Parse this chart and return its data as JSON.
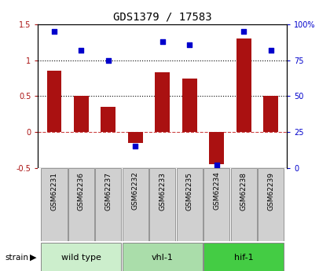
{
  "title": "GDS1379 / 17583",
  "samples": [
    "GSM62231",
    "GSM62236",
    "GSM62237",
    "GSM62232",
    "GSM62233",
    "GSM62235",
    "GSM62234",
    "GSM62238",
    "GSM62239"
  ],
  "log2_ratio": [
    0.85,
    0.5,
    0.35,
    -0.15,
    0.83,
    0.75,
    -0.45,
    1.3,
    0.5
  ],
  "percentile_rank": [
    95,
    82,
    75,
    15,
    88,
    86,
    2,
    95,
    82
  ],
  "groups": [
    {
      "label": "wild type",
      "start": 0,
      "end": 3,
      "color": "#cceecc"
    },
    {
      "label": "vhl-1",
      "start": 3,
      "end": 6,
      "color": "#aaddaa"
    },
    {
      "label": "hif-1",
      "start": 6,
      "end": 9,
      "color": "#44cc44"
    }
  ],
  "bar_color": "#aa1111",
  "dot_color": "#0000cc",
  "ylim": [
    -0.5,
    1.5
  ],
  "y2lim": [
    0,
    100
  ],
  "yticks": [
    -0.5,
    0.0,
    0.5,
    1.0,
    1.5
  ],
  "y2ticks": [
    0,
    25,
    50,
    75,
    100
  ],
  "hline_y": [
    0.0,
    0.5,
    1.0
  ],
  "hline_styles": [
    "dashed",
    "dotted",
    "dotted"
  ],
  "hline_colors": [
    "#cc4444",
    "#000000",
    "#000000"
  ],
  "background_color": "#ffffff",
  "cell_color": "#d0d0d0",
  "bar_width": 0.55,
  "title_fontsize": 10,
  "tick_fontsize": 7,
  "label_fontsize": 8,
  "legend_fontsize": 7.5
}
